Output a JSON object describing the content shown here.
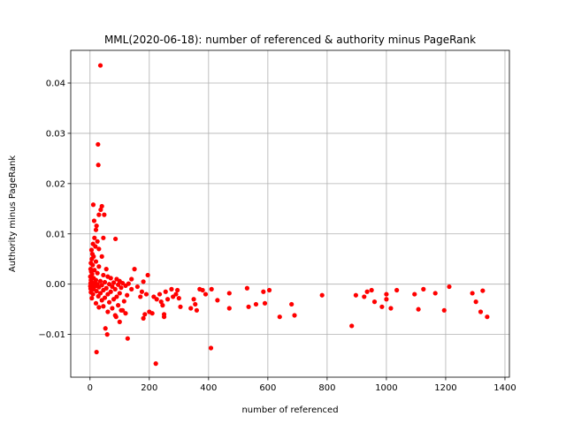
{
  "chart_data": {
    "type": "scatter",
    "title": "MML(2020-06-18): number of referenced & authority minus PageRank",
    "xlabel": "number of referenced",
    "ylabel": "Authority minus PageRank",
    "xlim": [
      -65,
      1415
    ],
    "ylim": [
      -0.0185,
      0.0465
    ],
    "xticks": [
      0,
      200,
      400,
      600,
      800,
      1000,
      1200,
      1400
    ],
    "yticks": [
      -0.01,
      0.0,
      0.01,
      0.02,
      0.03,
      0.04
    ],
    "xtick_labels": [
      "0",
      "200",
      "400",
      "600",
      "800",
      "1000",
      "1200",
      "1400"
    ],
    "ytick_labels": [
      "−0.01",
      "0.00",
      "0.01",
      "0.02",
      "0.03",
      "0.04"
    ],
    "grid": true,
    "marker_color": "#ff0000",
    "points": [
      [
        35,
        0.0435
      ],
      [
        27,
        0.0278
      ],
      [
        28,
        0.0237
      ],
      [
        40,
        0.0155
      ],
      [
        36,
        0.0148
      ],
      [
        30,
        0.0138
      ],
      [
        48,
        0.0138
      ],
      [
        11,
        0.0158
      ],
      [
        14,
        0.0126
      ],
      [
        22,
        0.0116
      ],
      [
        20,
        0.0108
      ],
      [
        45,
        0.0092
      ],
      [
        86,
        0.009
      ],
      [
        15,
        0.0092
      ],
      [
        25,
        0.0085
      ],
      [
        10,
        0.008
      ],
      [
        18,
        0.0075
      ],
      [
        30,
        0.007
      ],
      [
        5,
        0.0068
      ],
      [
        8,
        0.006
      ],
      [
        12,
        0.0055
      ],
      [
        40,
        0.0055
      ],
      [
        6,
        0.005
      ],
      [
        20,
        0.0045
      ],
      [
        3,
        0.0042
      ],
      [
        9,
        0.0038
      ],
      [
        30,
        0.0035
      ],
      [
        55,
        0.003
      ],
      [
        2,
        0.003
      ],
      [
        15,
        0.0028
      ],
      [
        4,
        0.0025
      ],
      [
        25,
        0.0022
      ],
      [
        7,
        0.002
      ],
      [
        45,
        0.0018
      ],
      [
        60,
        0.0015
      ],
      [
        1,
        0.0015
      ],
      [
        12,
        0.0012
      ],
      [
        70,
        0.0012
      ],
      [
        90,
        0.001
      ],
      [
        3,
        0.0008
      ],
      [
        20,
        0.0008
      ],
      [
        35,
        0.0006
      ],
      [
        100,
        0.0006
      ],
      [
        6,
        0.0004
      ],
      [
        50,
        0.0004
      ],
      [
        80,
        0.0003
      ],
      [
        2,
        0.0002
      ],
      [
        15,
        0.0002
      ],
      [
        110,
        0.0002
      ],
      [
        130,
        0.0001
      ],
      [
        4,
        0.0
      ],
      [
        25,
        0.0
      ],
      [
        65,
        0.0
      ],
      [
        95,
        -0.0001
      ],
      [
        8,
        -0.0002
      ],
      [
        40,
        -0.0002
      ],
      [
        120,
        -0.0003
      ],
      [
        1,
        -0.0004
      ],
      [
        18,
        -0.0004
      ],
      [
        75,
        -0.0005
      ],
      [
        5,
        -0.0006
      ],
      [
        30,
        -0.0006
      ],
      [
        105,
        -0.0007
      ],
      [
        55,
        -0.0008
      ],
      [
        2,
        -0.0009
      ],
      [
        12,
        -0.001
      ],
      [
        85,
        -0.001
      ],
      [
        140,
        -0.001
      ],
      [
        45,
        -0.0012
      ],
      [
        22,
        -0.0014
      ],
      [
        70,
        -0.0015
      ],
      [
        3,
        -0.0016
      ],
      [
        35,
        -0.0018
      ],
      [
        100,
        -0.0018
      ],
      [
        60,
        -0.002
      ],
      [
        10,
        -0.002
      ],
      [
        125,
        -0.0022
      ],
      [
        28,
        -0.0024
      ],
      [
        90,
        -0.0025
      ],
      [
        50,
        -0.0027
      ],
      [
        6,
        -0.0028
      ],
      [
        80,
        -0.003
      ],
      [
        40,
        -0.0032
      ],
      [
        115,
        -0.0034
      ],
      [
        65,
        -0.0036
      ],
      [
        20,
        -0.0038
      ],
      [
        95,
        -0.0042
      ],
      [
        45,
        -0.0044
      ],
      [
        30,
        -0.0046
      ],
      [
        75,
        -0.0048
      ],
      [
        105,
        -0.0052
      ],
      [
        60,
        -0.0055
      ],
      [
        120,
        -0.0058
      ],
      [
        85,
        -0.0062
      ],
      [
        110,
        -0.0052
      ],
      [
        88,
        -0.0065
      ],
      [
        100,
        -0.0075
      ],
      [
        52,
        -0.0088
      ],
      [
        58,
        -0.01
      ],
      [
        127,
        -0.0108
      ],
      [
        22,
        -0.0135
      ],
      [
        150,
        0.003
      ],
      [
        140,
        0.001
      ],
      [
        160,
        -0.0005
      ],
      [
        175,
        -0.0015
      ],
      [
        180,
        0.0005
      ],
      [
        190,
        -0.002
      ],
      [
        195,
        0.0018
      ],
      [
        170,
        -0.0025
      ],
      [
        185,
        -0.006
      ],
      [
        180,
        -0.0068
      ],
      [
        200,
        -0.0055
      ],
      [
        210,
        -0.0058
      ],
      [
        215,
        -0.0025
      ],
      [
        225,
        -0.003
      ],
      [
        235,
        -0.002
      ],
      [
        240,
        -0.0035
      ],
      [
        245,
        -0.0042
      ],
      [
        250,
        -0.006
      ],
      [
        250,
        -0.0065
      ],
      [
        255,
        -0.0015
      ],
      [
        262,
        -0.003
      ],
      [
        275,
        -0.001
      ],
      [
        280,
        -0.0025
      ],
      [
        290,
        -0.002
      ],
      [
        295,
        -0.0012
      ],
      [
        300,
        -0.0028
      ],
      [
        305,
        -0.0045
      ],
      [
        340,
        -0.0048
      ],
      [
        350,
        -0.003
      ],
      [
        355,
        -0.004
      ],
      [
        360,
        -0.0052
      ],
      [
        370,
        -0.001
      ],
      [
        380,
        -0.0012
      ],
      [
        390,
        -0.002
      ],
      [
        410,
        -0.001
      ],
      [
        430,
        -0.0032
      ],
      [
        470,
        -0.0018
      ],
      [
        470,
        -0.0048
      ],
      [
        530,
        -0.0008
      ],
      [
        535,
        -0.0045
      ],
      [
        560,
        -0.004
      ],
      [
        585,
        -0.0015
      ],
      [
        590,
        -0.0038
      ],
      [
        605,
        -0.0012
      ],
      [
        640,
        -0.0065
      ],
      [
        680,
        -0.004
      ],
      [
        690,
        -0.0062
      ],
      [
        783,
        -0.0022
      ],
      [
        883,
        -0.0083
      ],
      [
        897,
        -0.0022
      ],
      [
        925,
        -0.0025
      ],
      [
        935,
        -0.0015
      ],
      [
        950,
        -0.0012
      ],
      [
        960,
        -0.0035
      ],
      [
        985,
        -0.0045
      ],
      [
        1000,
        -0.003
      ],
      [
        1000,
        -0.002
      ],
      [
        1015,
        -0.0048
      ],
      [
        1035,
        -0.0012
      ],
      [
        1095,
        -0.002
      ],
      [
        1108,
        -0.005
      ],
      [
        1125,
        -0.001
      ],
      [
        1165,
        -0.0018
      ],
      [
        1195,
        -0.0052
      ],
      [
        1212,
        -0.0005
      ],
      [
        1290,
        -0.0018
      ],
      [
        1302,
        -0.0035
      ],
      [
        1318,
        -0.0055
      ],
      [
        1325,
        -0.0013
      ],
      [
        1340,
        -0.0065
      ],
      [
        222,
        -0.0158
      ],
      [
        408,
        -0.0127
      ]
    ]
  }
}
